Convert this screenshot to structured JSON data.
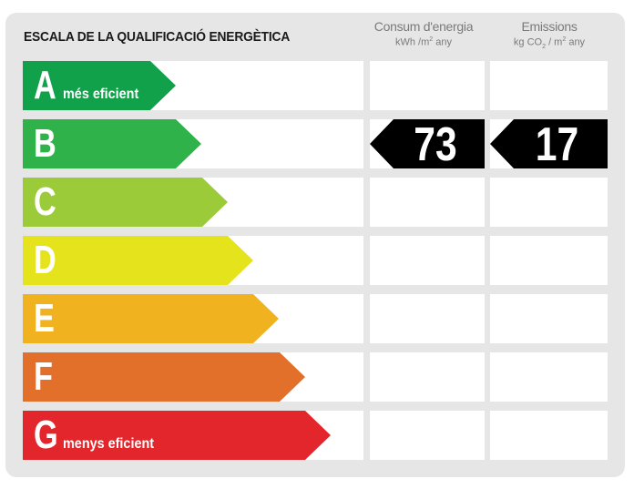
{
  "title": "ESCALA DE LA QUALIFICACIÓ ENERGÈTICA",
  "columns": {
    "consum": {
      "heading": "Consum d'energia",
      "unit_prefix": "kWh /m",
      "unit_exp": "2",
      "unit_suffix": " any"
    },
    "emissions": {
      "heading": "Emissions",
      "unit_prefix": "kg CO",
      "unit_sub": "2",
      "unit_mid": " / m",
      "unit_exp": "2",
      "unit_suffix": " any"
    }
  },
  "grades": [
    {
      "letter": "A",
      "label": "més eficient",
      "color": "#10a14a"
    },
    {
      "letter": "B",
      "label": "",
      "color": "#2fb24a"
    },
    {
      "letter": "C",
      "label": "",
      "color": "#9ccb3a"
    },
    {
      "letter": "D",
      "label": "",
      "color": "#e5e31c"
    },
    {
      "letter": "E",
      "label": "",
      "color": "#f0b21f"
    },
    {
      "letter": "F",
      "label": "",
      "color": "#e3702a"
    },
    {
      "letter": "G",
      "label": "menys eficient",
      "color": "#e3262c"
    }
  ],
  "rating": {
    "grade": "B",
    "consum_value": "73",
    "emissions_value": "17",
    "marker_color": "#000000"
  }
}
